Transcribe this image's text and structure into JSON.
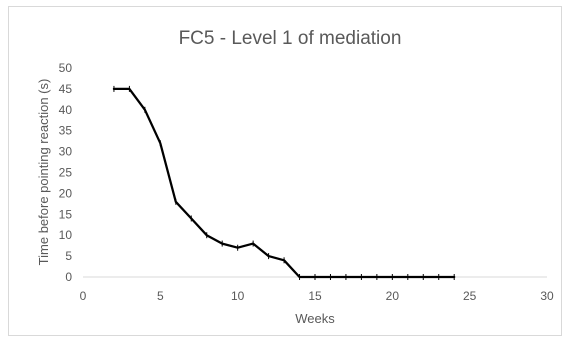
{
  "chart_data": {
    "type": "line",
    "title": "FC5 - Level 1 of mediation",
    "xlabel": "Weeks",
    "ylabel": "Time before pointing reaction (s)",
    "xlim": [
      0,
      30
    ],
    "ylim": [
      0,
      50
    ],
    "xticks": [
      "0",
      "5",
      "10",
      "15",
      "20",
      "25",
      "30"
    ],
    "yticks": [
      "0",
      "5",
      "10",
      "15",
      "20",
      "25",
      "30",
      "35",
      "40",
      "45",
      "50"
    ],
    "grid": false,
    "legend": "none",
    "series": [
      {
        "color": "#000000",
        "x": [
          2,
          3,
          4,
          5,
          6,
          7,
          8,
          9,
          10,
          11,
          12,
          13,
          14,
          15,
          16,
          17,
          18,
          19,
          20,
          21,
          22,
          23,
          24
        ],
        "y": [
          45,
          45,
          40,
          32,
          18,
          14,
          10,
          8,
          7,
          8,
          5,
          4,
          0,
          0,
          0,
          0,
          0,
          0,
          0,
          0,
          0,
          0,
          0
        ]
      }
    ],
    "axis_color": "#d9d9d9"
  }
}
